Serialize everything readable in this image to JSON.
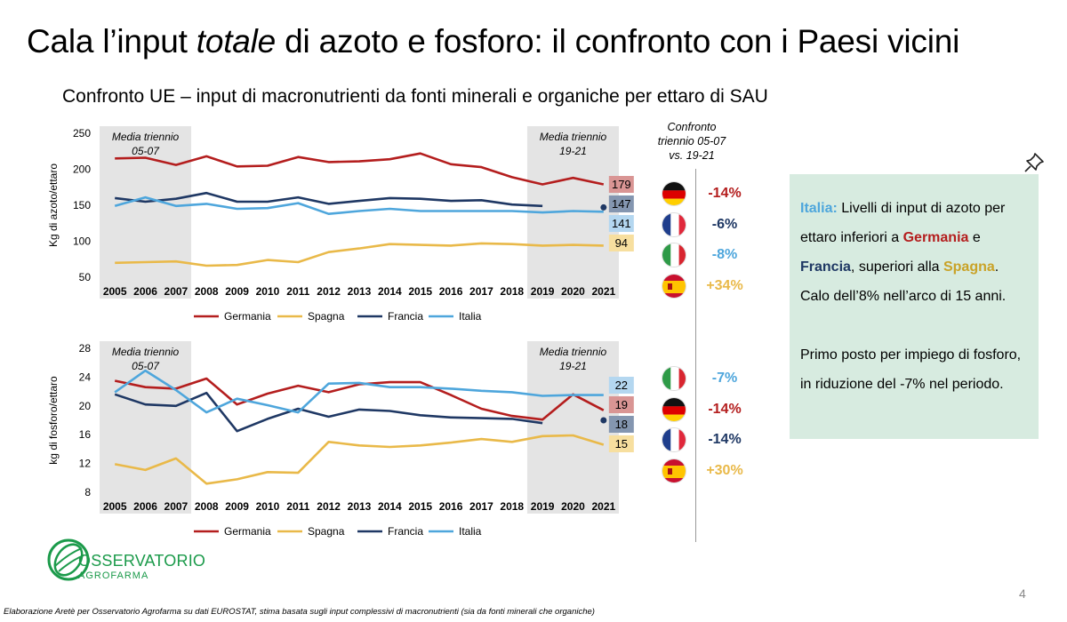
{
  "title": {
    "part1": "Cala l’input ",
    "italic": "totale",
    "part2": " di azoto e fosforo: il confronto con i Paesi vicini"
  },
  "subtitle": "Confronto UE – input di macronutrienti da fonti minerali e organiche per ettaro di SAU",
  "comparison_header": {
    "line1": "Confronto",
    "line2": "triennio 05-07",
    "line3": "vs. 19-21"
  },
  "nitrogen_comparison": [
    {
      "country": "Germania",
      "flag": "germany-flag-icon",
      "value": "-14%",
      "color": "#b41e1e"
    },
    {
      "country": "Francia",
      "flag": "france-flag-icon",
      "value": "-6%",
      "color": "#1f3864"
    },
    {
      "country": "Italia",
      "flag": "italy-flag-icon",
      "value": "-8%",
      "color": "#4ea6dc"
    },
    {
      "country": "Spagna",
      "flag": "spain-flag-icon",
      "value": "+34%",
      "color": "#e9b949"
    }
  ],
  "phosphorus_comparison": [
    {
      "country": "Italia",
      "flag": "italy-flag-icon",
      "value": "-7%",
      "color": "#4ea6dc"
    },
    {
      "country": "Germania",
      "flag": "germany-flag-icon",
      "value": "-14%",
      "color": "#b41e1e"
    },
    {
      "country": "Francia",
      "flag": "france-flag-icon",
      "value": "-14%",
      "color": "#1f3864"
    },
    {
      "country": "Spagna",
      "flag": "spain-flag-icon",
      "value": "+30%",
      "color": "#e9b949"
    }
  ],
  "info_box": {
    "p1_it": "Italia:",
    "p1_a": " Livelli di input di azoto per ettaro inferiori a ",
    "p1_de": "Germania",
    "p1_b": " e ",
    "p1_fr": "Francia",
    "p1_c": ", superiori alla ",
    "p1_es": "Spagna",
    "p1_d": ". Calo dell’8% nell’arco di 15 anni.",
    "p2": "Primo posto per impiego di fosforo, in riduzione del -7% nel periodo."
  },
  "logo": {
    "line1": "OSSERVATORIO",
    "line2": "AGROFARMA"
  },
  "page_number": "4",
  "footnote": "Elaborazione Aretè per Osservatorio Agrofarma su dati EUROSTAT, stima basata sugli input complessivi di macronutrienti (sia da fonti minerali che organiche)",
  "chart_data": [
    {
      "type": "line",
      "title": "",
      "ylabel": "Kg di azoto/ettaro",
      "xlabel": "",
      "ylim": [
        50,
        250
      ],
      "yticks": [
        50,
        100,
        150,
        200,
        250
      ],
      "x": [
        2005,
        2006,
        2007,
        2008,
        2009,
        2010,
        2011,
        2012,
        2013,
        2014,
        2015,
        2016,
        2017,
        2018,
        2019,
        2020,
        2021
      ],
      "shaded_periods": [
        {
          "from": 2005,
          "to": 2007,
          "label_line1": "Media triennio",
          "label_line2": "05-07"
        },
        {
          "from": 2019,
          "to": 2021,
          "label_line1": "Media triennio",
          "label_line2": "19-21"
        }
      ],
      "series": [
        {
          "name": "Germania",
          "color": "#b41e1e",
          "values": [
            215,
            216,
            206,
            218,
            204,
            205,
            217,
            210,
            211,
            214,
            222,
            207,
            203,
            189,
            179,
            188,
            179
          ]
        },
        {
          "name": "Spagna",
          "color": "#e9b949",
          "values": [
            70,
            71,
            72,
            66,
            67,
            74,
            71,
            85,
            90,
            96,
            95,
            94,
            97,
            96,
            94,
            95,
            94
          ]
        },
        {
          "name": "Francia",
          "color": "#1f3864",
          "values": [
            160,
            155,
            159,
            167,
            155,
            155,
            161,
            152,
            156,
            160,
            159,
            156,
            157,
            151,
            149,
            null,
            147
          ]
        },
        {
          "name": "Italia",
          "color": "#4ea6dc",
          "values": [
            149,
            161,
            149,
            152,
            145,
            146,
            153,
            138,
            142,
            145,
            142,
            142,
            142,
            142,
            140,
            142,
            141
          ]
        }
      ],
      "end_labels": [
        {
          "series": "Germania",
          "text": "179",
          "value": 179,
          "bg": "#d99594",
          "pos": 0
        },
        {
          "series": "Francia",
          "text": "147",
          "value": 147,
          "bg": "#8496b0",
          "pos": 1
        },
        {
          "series": "Italia",
          "text": "141",
          "value": 141,
          "bg": "#b4d7f0",
          "pos": 2
        },
        {
          "series": "Spagna",
          "text": "94",
          "value": 94,
          "bg": "#f7df9f",
          "pos": 3
        }
      ],
      "legend": "bottom"
    },
    {
      "type": "line",
      "title": "",
      "ylabel": "kg di fosforo/ettaro",
      "xlabel": "",
      "ylim": [
        8,
        28
      ],
      "yticks": [
        8,
        12,
        16,
        20,
        24,
        28
      ],
      "x": [
        2005,
        2006,
        2007,
        2008,
        2009,
        2010,
        2011,
        2012,
        2013,
        2014,
        2015,
        2016,
        2017,
        2018,
        2019,
        2020,
        2021
      ],
      "shaded_periods": [
        {
          "from": 2005,
          "to": 2007,
          "label_line1": "Media triennio",
          "label_line2": "05-07"
        },
        {
          "from": 2019,
          "to": 2021,
          "label_line1": "Media triennio",
          "label_line2": "19-21"
        }
      ],
      "series": [
        {
          "name": "Germania",
          "color": "#b41e1e",
          "values": [
            23.5,
            22.6,
            22.4,
            23.8,
            20.2,
            21.7,
            22.8,
            21.9,
            23.0,
            23.3,
            23.3,
            21.5,
            19.6,
            18.6,
            18.1,
            21.6,
            19.4
          ]
        },
        {
          "name": "Spagna",
          "color": "#e9b949",
          "values": [
            11.9,
            11.1,
            12.7,
            9.2,
            9.8,
            10.8,
            10.7,
            15.0,
            14.5,
            14.3,
            14.5,
            14.9,
            15.4,
            15.0,
            15.8,
            15.9,
            14.6
          ]
        },
        {
          "name": "Francia",
          "color": "#1f3864",
          "values": [
            21.6,
            20.2,
            20.0,
            21.8,
            16.5,
            18.2,
            19.6,
            18.5,
            19.5,
            19.3,
            18.7,
            18.4,
            18.3,
            18.2,
            17.6,
            null,
            18.0
          ]
        },
        {
          "name": "Italia",
          "color": "#4ea6dc",
          "values": [
            21.9,
            24.9,
            22.2,
            19.1,
            21.0,
            20.1,
            19.1,
            23.1,
            23.2,
            22.6,
            22.6,
            22.4,
            22.1,
            21.9,
            21.4,
            21.5,
            21.5
          ]
        }
      ],
      "end_labels": [
        {
          "series": "Italia",
          "text": "22",
          "value": 21.5,
          "bg": "#b4d7f0",
          "pos": 0
        },
        {
          "series": "Germania",
          "text": "19",
          "value": 19.4,
          "bg": "#d99594",
          "pos": 1
        },
        {
          "series": "Francia",
          "text": "18",
          "value": 18.0,
          "bg": "#8496b0",
          "pos": 2
        },
        {
          "series": "Spagna",
          "text": "15",
          "value": 14.6,
          "bg": "#f7df9f",
          "pos": 3
        }
      ],
      "legend": "bottom"
    }
  ]
}
